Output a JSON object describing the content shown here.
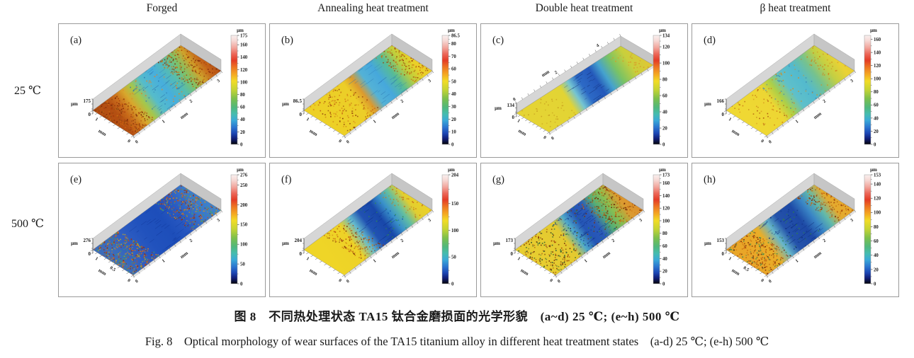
{
  "figure": {
    "column_headers": [
      "Forged",
      "Annealing heat treatment",
      "Double heat treatment",
      "β heat treatment"
    ],
    "row_labels": [
      "25 ℃",
      "500 ℃"
    ],
    "caption_zh": "图 8　不同热处理状态 TA15 钛合金磨损面的光学形貌　(a~d) 25 ℃; (e~h) 500 ℃",
    "caption_en": "Fig. 8　Optical morphology of wear surfaces of the TA15 titanium alloy in different heat treatment states　(a-d) 25 ℃; (e-h) 500 ℃"
  },
  "colorbar_gradient": [
    [
      0.0,
      "#f9f0ef"
    ],
    [
      0.05,
      "#f6d8d4"
    ],
    [
      0.11,
      "#f2a89f"
    ],
    [
      0.17,
      "#ec685a"
    ],
    [
      0.23,
      "#e43c26"
    ],
    [
      0.3,
      "#ee7c22"
    ],
    [
      0.36,
      "#f5a922"
    ],
    [
      0.42,
      "#f2dc26"
    ],
    [
      0.5,
      "#c4d434"
    ],
    [
      0.58,
      "#7cc04c"
    ],
    [
      0.66,
      "#50b87c"
    ],
    [
      0.72,
      "#46bcae"
    ],
    [
      0.78,
      "#3aaad8"
    ],
    [
      0.84,
      "#2c78d0"
    ],
    [
      0.9,
      "#1c46b4"
    ],
    [
      0.95,
      "#101c74"
    ],
    [
      1.0,
      "#060609"
    ]
  ],
  "chart_data": [
    {
      "type": "heatmap",
      "panel": "(a)",
      "row": "25 ℃",
      "column": "Forged",
      "geometry": "std",
      "z_unit": "μm",
      "z_max": "175",
      "z_min": "0",
      "colorbar_title": "μm",
      "colorbar_max": 175,
      "colorbar_ticks": [
        "175",
        "160",
        "140",
        "120",
        "100",
        "80",
        "60",
        "40",
        "20",
        "0"
      ],
      "x_axis": {
        "label": "mm",
        "ticks": [
          "1",
          "2",
          "3"
        ],
        "max": 3.2,
        "side": "bottom"
      },
      "y_axis": {
        "label": "mm",
        "ticks": [
          "1"
        ],
        "max": 1.25
      },
      "surface_gradient": [
        [
          0,
          "#b44f12"
        ],
        [
          0.08,
          "#c96d1c"
        ],
        [
          0.17,
          "#d8a62c"
        ],
        [
          0.26,
          "#a6c74a"
        ],
        [
          0.36,
          "#56bcca"
        ],
        [
          0.5,
          "#47aedd"
        ],
        [
          0.62,
          "#55bcb2"
        ],
        [
          0.72,
          "#7cc36a"
        ],
        [
          0.82,
          "#cfa42c"
        ],
        [
          0.91,
          "#c4641a"
        ],
        [
          1,
          "#b45014"
        ]
      ],
      "speckle_zones": [
        {
          "t0": 0,
          "t1": 0.26,
          "n": 260,
          "type": "dot",
          "c": [
            "#7c2606",
            "#a83c0a",
            "#d0700f",
            "#8a4a10"
          ]
        },
        {
          "t0": 0.72,
          "t1": 1,
          "n": 220,
          "type": "dot",
          "c": [
            "#7c2606",
            "#b04408",
            "#d0780f"
          ]
        },
        {
          "t0": 0.3,
          "t1": 0.7,
          "n": 60,
          "type": "dot",
          "c": [
            "#2e7ab0",
            "#e08428"
          ]
        },
        {
          "t0": 0.33,
          "t1": 0.66,
          "n": 26,
          "type": "streak",
          "c": [
            "#2a66a8"
          ]
        }
      ]
    },
    {
      "type": "heatmap",
      "panel": "(b)",
      "row": "25 ℃",
      "column": "Annealing heat treatment",
      "geometry": "std",
      "z_unit": "μm",
      "z_max": "86.5",
      "z_min": "0",
      "colorbar_title": "μm",
      "colorbar_max": 86.5,
      "colorbar_ticks": [
        "86.5",
        "80",
        "70",
        "60",
        "50",
        "40",
        "30",
        "20",
        "10",
        "0"
      ],
      "x_axis": {
        "label": "mm",
        "ticks": [
          "1",
          "2",
          "3"
        ],
        "max": 3.2,
        "side": "bottom"
      },
      "y_axis": {
        "label": "mm",
        "ticks": [
          "1"
        ],
        "max": 1.25
      },
      "surface_gradient": [
        [
          0,
          "#edd026"
        ],
        [
          0.28,
          "#ecce28"
        ],
        [
          0.37,
          "#dc9a2e"
        ],
        [
          0.46,
          "#54b2d6"
        ],
        [
          0.58,
          "#46a8dc"
        ],
        [
          0.7,
          "#57bc96"
        ],
        [
          0.81,
          "#bccf3e"
        ],
        [
          0.91,
          "#ead028"
        ],
        [
          1,
          "#e9cb28"
        ]
      ],
      "speckle_zones": [
        {
          "t0": 0.05,
          "t1": 0.42,
          "n": 150,
          "type": "dot",
          "c": [
            "#8a3808",
            "#c05c10",
            "#d88818"
          ]
        },
        {
          "t0": 0.8,
          "t1": 1,
          "n": 130,
          "type": "dot",
          "c": [
            "#9a4208",
            "#cc6c10"
          ]
        },
        {
          "t0": 0.45,
          "t1": 0.75,
          "n": 30,
          "type": "streak",
          "c": [
            "#2a72b0"
          ]
        }
      ]
    },
    {
      "type": "heatmap",
      "panel": "(c)",
      "row": "25 ℃",
      "column": "Double heat treatment",
      "geometry": "wide",
      "z_unit": "μm",
      "z_max": "134",
      "z_min": "0",
      "colorbar_title": "μm",
      "colorbar_max": 134,
      "colorbar_ticks": [
        "134",
        "120",
        "100",
        "80",
        "60",
        "40",
        "20",
        "0"
      ],
      "x_axis": {
        "label": "mm",
        "ticks": [
          "0",
          "2",
          "4"
        ],
        "max": 5,
        "side": "top"
      },
      "y_axis": {
        "label": "mm",
        "ticks": [
          "1"
        ],
        "max": 1.25
      },
      "extra_zero_at_end": true,
      "surface_gradient": [
        [
          0,
          "#e5d434"
        ],
        [
          0.27,
          "#e2d434"
        ],
        [
          0.35,
          "#74c4d2"
        ],
        [
          0.43,
          "#2d6ac6"
        ],
        [
          0.55,
          "#2458ba"
        ],
        [
          0.63,
          "#45a2ce"
        ],
        [
          0.73,
          "#7ac364"
        ],
        [
          0.85,
          "#c9cf3c"
        ],
        [
          1,
          "#e2c634"
        ]
      ],
      "speckle_zones": [
        {
          "t0": 0.4,
          "t1": 0.62,
          "n": 24,
          "type": "streak",
          "c": [
            "#102a70"
          ]
        },
        {
          "t0": 0,
          "t1": 0.3,
          "n": 40,
          "type": "dot",
          "c": [
            "#c8a020"
          ]
        },
        {
          "t0": 0.85,
          "t1": 1,
          "n": 30,
          "type": "dot",
          "c": [
            "#d89a28"
          ]
        }
      ]
    },
    {
      "type": "heatmap",
      "panel": "(d)",
      "row": "25 ℃",
      "column": "β heat treatment",
      "geometry": "std",
      "z_unit": "μm",
      "z_max": "166",
      "z_min": "0",
      "colorbar_title": "μm",
      "colorbar_max": 166,
      "colorbar_ticks": [
        "160",
        "140",
        "120",
        "100",
        "80",
        "60",
        "40",
        "20",
        "0"
      ],
      "x_axis": {
        "label": "mm",
        "ticks": [
          "1",
          "2",
          "3"
        ],
        "max": 3.2,
        "side": "bottom"
      },
      "y_axis": {
        "label": "mm",
        "ticks": [
          "1"
        ],
        "max": 1.25
      },
      "surface_gradient": [
        [
          0,
          "#efd833"
        ],
        [
          0.22,
          "#edd633"
        ],
        [
          0.32,
          "#accf48"
        ],
        [
          0.43,
          "#5fc0ca"
        ],
        [
          0.57,
          "#53bace"
        ],
        [
          0.69,
          "#76c28e"
        ],
        [
          0.81,
          "#c2cf44"
        ],
        [
          0.93,
          "#ead234"
        ],
        [
          1,
          "#e9ce30"
        ]
      ],
      "speckle_zones": [
        {
          "t0": 0.05,
          "t1": 0.35,
          "n": 60,
          "type": "dot",
          "c": [
            "#d08018",
            "#b05c10"
          ]
        },
        {
          "t0": 0.35,
          "t1": 0.75,
          "n": 70,
          "type": "dot",
          "c": [
            "#3a88b8",
            "#d08f20"
          ]
        },
        {
          "t0": 0.8,
          "t1": 1,
          "n": 40,
          "type": "dot",
          "c": [
            "#d08018"
          ]
        }
      ]
    },
    {
      "type": "heatmap",
      "panel": "(e)",
      "row": "500 ℃",
      "column": "Forged",
      "geometry": "std",
      "z_unit": "μm",
      "z_max": "276",
      "z_min": "0",
      "colorbar_title": "μm",
      "colorbar_max": 276,
      "colorbar_ticks": [
        "276",
        "250",
        "200",
        "150",
        "100",
        "50",
        "0"
      ],
      "x_axis": {
        "label": "mm",
        "ticks": [
          "1",
          "2",
          "3"
        ],
        "max": 3.2,
        "side": "bottom"
      },
      "y_axis": {
        "label": "mm",
        "ticks": [
          "0.5",
          "1"
        ],
        "max": 1.25
      },
      "surface_gradient": [
        [
          0,
          "#3b6cbb"
        ],
        [
          0.14,
          "#2f5ec2"
        ],
        [
          0.32,
          "#2152bd"
        ],
        [
          0.52,
          "#1d4eba"
        ],
        [
          0.68,
          "#2a5ac2"
        ],
        [
          0.84,
          "#3a78ca"
        ],
        [
          1,
          "#3f85ca"
        ]
      ],
      "speckle_zones": [
        {
          "t0": 0,
          "t1": 0.3,
          "n": 340,
          "type": "dot",
          "c": [
            "#a03008",
            "#cc5410",
            "#e07c14",
            "#3f9e62",
            "#c8a81e"
          ]
        },
        {
          "t0": 0.68,
          "t1": 1,
          "n": 300,
          "type": "dot",
          "c": [
            "#a03008",
            "#cc5410",
            "#49a065",
            "#d29020"
          ]
        },
        {
          "t0": 0.3,
          "t1": 0.68,
          "n": 30,
          "type": "streak",
          "c": [
            "#12389a"
          ]
        }
      ]
    },
    {
      "type": "heatmap",
      "panel": "(f)",
      "row": "500 ℃",
      "column": "Annealing heat treatment",
      "geometry": "std",
      "z_unit": "μm",
      "z_max": "204",
      "z_min": "0",
      "colorbar_title": "μm",
      "colorbar_max": 204,
      "colorbar_ticks": [
        "204",
        "150",
        "100",
        "50",
        "0"
      ],
      "x_axis": {
        "label": "mm",
        "ticks": [
          "1",
          "2",
          "3"
        ],
        "max": 3.2,
        "side": "bottom"
      },
      "y_axis": {
        "label": "mm",
        "ticks": [
          "1"
        ],
        "max": 1.25
      },
      "surface_gradient": [
        [
          0,
          "#efd527"
        ],
        [
          0.24,
          "#edd127"
        ],
        [
          0.35,
          "#64bace"
        ],
        [
          0.45,
          "#2152b2"
        ],
        [
          0.58,
          "#1847a9"
        ],
        [
          0.68,
          "#3a92ca"
        ],
        [
          0.77,
          "#62bea2"
        ],
        [
          0.87,
          "#e2ce30"
        ],
        [
          1,
          "#edd127"
        ]
      ],
      "speckle_zones": [
        {
          "t0": 0.22,
          "t1": 0.46,
          "n": 160,
          "type": "dot",
          "c": [
            "#7c2a06",
            "#b84c0c",
            "#d07c12"
          ]
        },
        {
          "t0": 0.5,
          "t1": 0.8,
          "n": 40,
          "type": "dot",
          "c": [
            "#2f8a50",
            "#155ab0"
          ]
        },
        {
          "t0": 0.42,
          "t1": 0.72,
          "n": 26,
          "type": "streak",
          "c": [
            "#0e2f88"
          ]
        },
        {
          "t0": 0.84,
          "t1": 1,
          "n": 50,
          "type": "dot",
          "c": [
            "#c8791a"
          ]
        }
      ]
    },
    {
      "type": "heatmap",
      "panel": "(g)",
      "row": "500 ℃",
      "column": "Double heat treatment",
      "geometry": "std",
      "z_unit": "μm",
      "z_max": "173",
      "z_min": "0",
      "colorbar_title": "μm",
      "colorbar_max": 173,
      "colorbar_ticks": [
        "173",
        "160",
        "140",
        "120",
        "100",
        "80",
        "60",
        "40",
        "20",
        "0"
      ],
      "x_axis": {
        "label": "mm",
        "ticks": [
          "1",
          "2",
          "3"
        ],
        "max": 3.2,
        "side": "bottom"
      },
      "y_axis": {
        "label": "mm",
        "ticks": [
          "1"
        ],
        "max": 1.25
      },
      "surface_gradient": [
        [
          0,
          "#e7cd30"
        ],
        [
          0.27,
          "#e3c930"
        ],
        [
          0.37,
          "#4faaca"
        ],
        [
          0.47,
          "#2455b5"
        ],
        [
          0.58,
          "#2a5aba"
        ],
        [
          0.68,
          "#55ae76"
        ],
        [
          0.78,
          "#8abf50"
        ],
        [
          0.88,
          "#db9b30"
        ],
        [
          1,
          "#dd8e2c"
        ]
      ],
      "speckle_zones": [
        {
          "t0": 0,
          "t1": 0.35,
          "n": 200,
          "type": "dot",
          "c": [
            "#6e2a06",
            "#a4460a",
            "#2c6030"
          ]
        },
        {
          "t0": 0.35,
          "t1": 0.7,
          "n": 120,
          "type": "dot",
          "c": [
            "#173a8e",
            "#2c8048",
            "#7c3208"
          ]
        },
        {
          "t0": 0.7,
          "t1": 1,
          "n": 240,
          "type": "dot",
          "c": [
            "#6e2a06",
            "#b8560c",
            "#d4821a"
          ]
        },
        {
          "t0": 0.38,
          "t1": 0.68,
          "n": 24,
          "type": "streak",
          "c": [
            "#0f2d7e"
          ]
        }
      ]
    },
    {
      "type": "heatmap",
      "panel": "(h)",
      "row": "500 ℃",
      "column": "β heat treatment",
      "geometry": "std",
      "z_unit": "μm",
      "z_max": "153",
      "z_min": "0",
      "colorbar_title": "μm",
      "colorbar_max": 153,
      "colorbar_ticks": [
        "153",
        "140",
        "120",
        "100",
        "80",
        "60",
        "40",
        "20",
        "0"
      ],
      "x_axis": {
        "label": "mm",
        "ticks": [
          "1",
          "2",
          "3"
        ],
        "max": 3.2,
        "side": "bottom"
      },
      "y_axis": {
        "label": "mm",
        "ticks": [
          "0.5",
          "1"
        ],
        "max": 1.25
      },
      "surface_gradient": [
        [
          0,
          "#e9a628"
        ],
        [
          0.18,
          "#e9ae28"
        ],
        [
          0.29,
          "#66b6ca"
        ],
        [
          0.39,
          "#2452aa"
        ],
        [
          0.55,
          "#1d49a5"
        ],
        [
          0.66,
          "#3a86c6"
        ],
        [
          0.76,
          "#62baaa"
        ],
        [
          0.86,
          "#e2aa30"
        ],
        [
          1,
          "#e9a828"
        ]
      ],
      "speckle_zones": [
        {
          "t0": 0,
          "t1": 0.3,
          "n": 260,
          "type": "dot",
          "c": [
            "#6e2206",
            "#a23c08",
            "#c86a10",
            "#3c8a4e"
          ]
        },
        {
          "t0": 0.3,
          "t1": 0.7,
          "n": 60,
          "type": "dot",
          "c": [
            "#0f2f80",
            "#2f7e4a"
          ]
        },
        {
          "t0": 0.34,
          "t1": 0.66,
          "n": 28,
          "type": "streak",
          "c": [
            "#0c2a78"
          ]
        },
        {
          "t0": 0.8,
          "t1": 1,
          "n": 140,
          "type": "dot",
          "c": [
            "#8a3006",
            "#c86a10"
          ]
        }
      ]
    }
  ]
}
